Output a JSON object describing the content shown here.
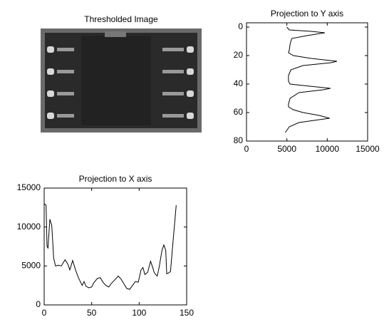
{
  "chart_data": [
    {
      "type": "image",
      "title": "Thresholded Image"
    },
    {
      "type": "line",
      "title": "Projection to Y axis",
      "orientation": "horizontal",
      "color": "#000000",
      "y": [
        0,
        2,
        3,
        4,
        6,
        8,
        12,
        16,
        18,
        20,
        22,
        24,
        25,
        27,
        30,
        34,
        38,
        40,
        41,
        43,
        44,
        46,
        50,
        54,
        56,
        58,
        60,
        62,
        64,
        65,
        67,
        70,
        74
      ],
      "values": [
        5000,
        5300,
        8000,
        9700,
        7500,
        5600,
        5400,
        5300,
        5200,
        5800,
        8000,
        11200,
        10500,
        7000,
        5500,
        5200,
        5200,
        5400,
        7000,
        10400,
        9500,
        6500,
        5400,
        5200,
        5200,
        5800,
        7000,
        9000,
        10300,
        9000,
        6500,
        5300,
        4800
      ],
      "xlim": [
        0,
        15000
      ],
      "xticks": [
        0,
        5000,
        10000,
        15000
      ],
      "ylim": [
        -3,
        80
      ],
      "yticks": [
        0,
        20,
        40,
        60,
        80
      ],
      "yreverse": true
    },
    {
      "type": "line",
      "title": "Projection to X axis",
      "color": "#000000",
      "x": [
        0,
        2,
        3,
        4,
        6,
        8,
        10,
        12,
        15,
        18,
        22,
        25,
        27,
        30,
        33,
        36,
        40,
        42,
        44,
        47,
        50,
        52,
        56,
        59,
        62,
        65,
        68,
        71,
        75,
        78,
        81,
        84,
        87,
        90,
        93,
        96,
        99,
        102,
        104,
        106,
        109,
        112,
        114,
        116,
        119,
        121,
        124,
        126,
        128,
        129,
        131,
        133,
        135,
        137,
        139
      ],
      "values": [
        13000,
        12800,
        7500,
        7300,
        11000,
        10200,
        6000,
        5000,
        5100,
        5000,
        5800,
        5200,
        4500,
        5700,
        4500,
        3500,
        2500,
        3000,
        2400,
        2200,
        2300,
        2800,
        3400,
        3500,
        2900,
        2500,
        2300,
        2800,
        3300,
        3700,
        3300,
        2700,
        2100,
        2000,
        2500,
        3000,
        2900,
        4500,
        4800,
        3900,
        4200,
        5600,
        4900,
        4100,
        3700,
        4800,
        7000,
        7700,
        7000,
        4000,
        4100,
        4300,
        7200,
        10000,
        12800
      ],
      "xlim": [
        0,
        150
      ],
      "xticks": [
        0,
        50,
        100,
        150
      ],
      "ylim": [
        0,
        15000
      ],
      "yticks": [
        0,
        5000,
        10000,
        15000
      ]
    }
  ]
}
